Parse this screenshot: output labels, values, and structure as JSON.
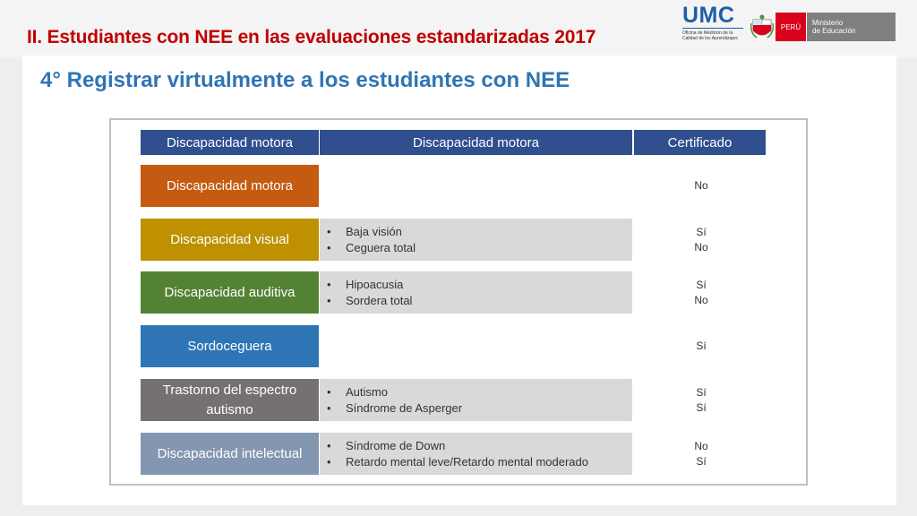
{
  "header": {
    "title": "II. Estudiantes con NEE en las evaluaciones estandarizadas 2017",
    "logo": {
      "umc": "UMC",
      "umc_sub": [
        "Oficina de Medición de la",
        "Calidad de los Aprendizajes"
      ],
      "peru": "PERÚ",
      "ministry": [
        "Ministerio",
        "de Educación"
      ]
    }
  },
  "subtitle": "4° Registrar virtualmente a los estudiantes con NEE",
  "table": {
    "headers": [
      "Discapacidad motora",
      "Discapacidad motora",
      "Certificado"
    ],
    "rows": [
      {
        "category": "Discapacidad motora",
        "color": "#c55a11",
        "subtypes": [],
        "cert": [
          "No"
        ]
      },
      {
        "category": "Discapacidad visual",
        "color": "#bf9000",
        "subtypes": [
          "Baja visión",
          "Ceguera total"
        ],
        "cert": [
          "Sí",
          "No"
        ]
      },
      {
        "category": "Discapacidad auditiva",
        "color": "#548235",
        "subtypes": [
          "Hipoacusia",
          "Sordera total"
        ],
        "cert": [
          "Sí",
          "No"
        ]
      },
      {
        "category": "Sordoceguera",
        "color": "#2e75b6",
        "subtypes": [],
        "cert": [
          "Sí"
        ]
      },
      {
        "category": "Trastorno del espectro autismo",
        "color": "#767171",
        "subtypes": [
          "Autismo",
          "Síndrome de Asperger"
        ],
        "cert": [
          "Sí",
          "Sí"
        ]
      },
      {
        "category": "Discapacidad intelectual",
        "color": "#8497b0",
        "subtypes": [
          "Síndrome de Down",
          "Retardo mental leve/Retardo mental moderado"
        ],
        "cert": [
          "No",
          "Sí"
        ]
      }
    ]
  }
}
